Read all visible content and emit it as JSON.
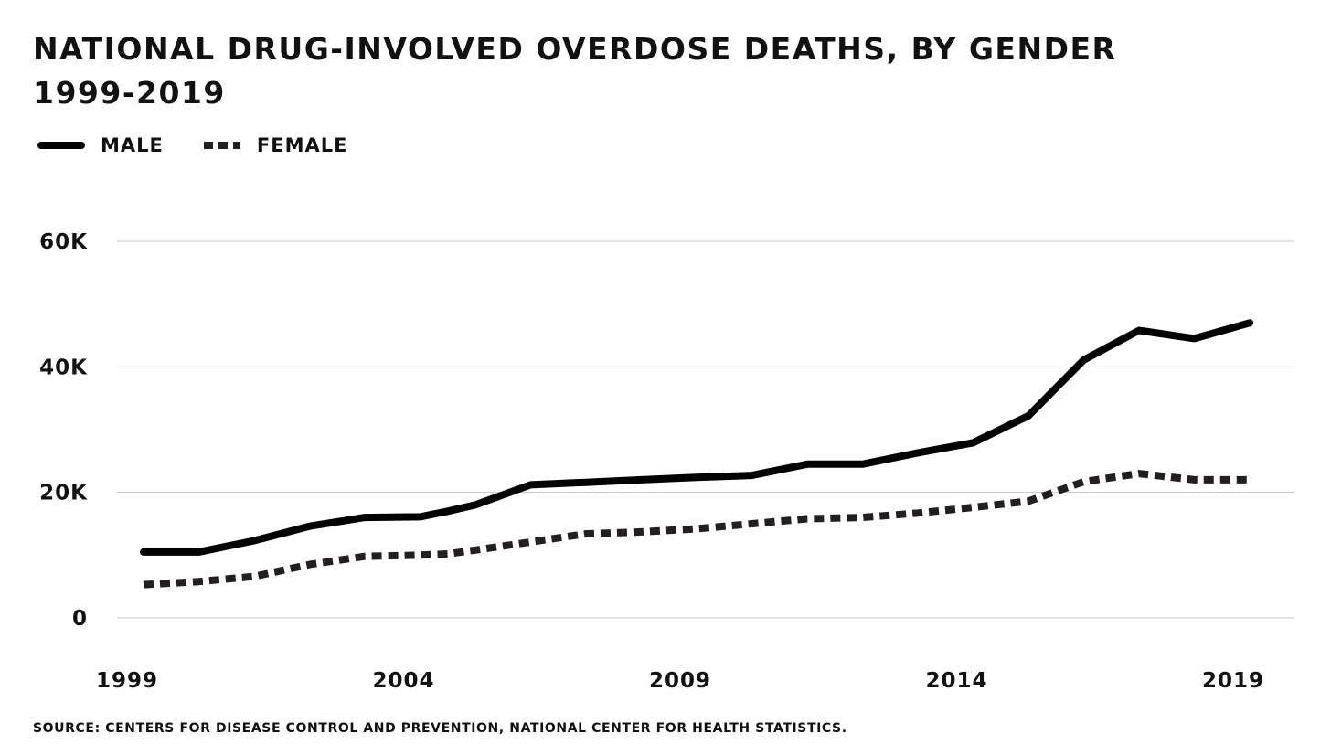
{
  "chart_data": {
    "type": "line",
    "title": "National drug-involved overdose deaths, by gender",
    "subtitle": "1999-2019",
    "xlabel": "",
    "ylabel": "",
    "source": "Source: Centers for Disease Control and Prevention, National Center for Health Statistics.",
    "x": [
      1999,
      2000,
      2001,
      2002,
      2003,
      2004,
      2004.5,
      2005,
      2006,
      2007,
      2008,
      2009,
      2010,
      2011,
      2012,
      2013,
      2014,
      2015,
      2016,
      2017,
      2018,
      2019
    ],
    "series": [
      {
        "name": "Male",
        "style": "solid",
        "color": "#000000",
        "values": [
          10500,
          10500,
          12300,
          14600,
          16000,
          16100,
          17000,
          18000,
          21200,
          21600,
          22000,
          22400,
          22700,
          24500,
          24500,
          26300,
          27900,
          32200,
          41100,
          45800,
          44500,
          47000
        ]
      },
      {
        "name": "Female",
        "style": "dotted",
        "color": "#231f20",
        "values": [
          5300,
          5800,
          6600,
          8500,
          9800,
          10000,
          10200,
          10800,
          12100,
          13400,
          13700,
          14200,
          15000,
          15800,
          16000,
          16700,
          17600,
          18600,
          21700,
          23000,
          22000,
          22000
        ]
      }
    ],
    "xticks": [
      1999,
      2004,
      2009,
      2014,
      2019
    ],
    "xtick_labels": [
      "1999",
      "2004",
      "2009",
      "2014",
      "2019"
    ],
    "yticks": [
      0,
      20000,
      40000,
      60000
    ],
    "ytick_labels": [
      "0",
      "20K",
      "40K",
      "60K"
    ],
    "xlim": [
      1999,
      2019
    ],
    "ylim": [
      0,
      60000
    ],
    "grid": "horizontal",
    "legend": "top-left"
  }
}
